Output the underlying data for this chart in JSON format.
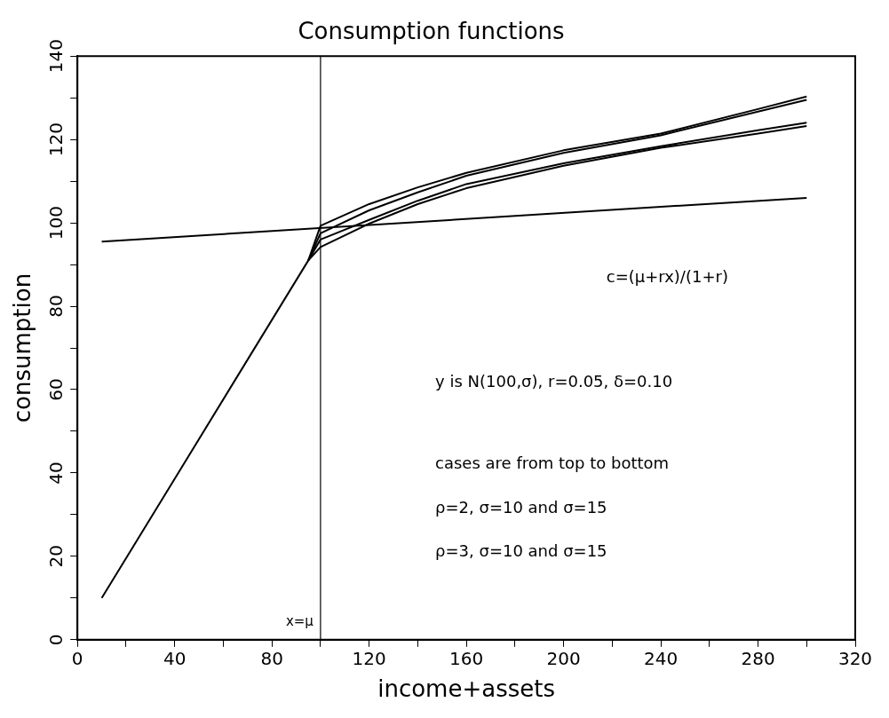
{
  "chart_data": {
    "type": "line",
    "title": "Consumption functions",
    "xlabel": "income+assets",
    "ylabel": "consumption",
    "xlim": [
      0,
      320
    ],
    "ylim": [
      0,
      140
    ],
    "xticks": [
      0,
      {
        "value": 20,
        "label": null
      },
      40,
      {
        "value": 60,
        "label": null
      },
      80,
      {
        "value": 100,
        "label": null
      },
      120,
      {
        "value": 140,
        "label": null
      },
      160,
      {
        "value": 180,
        "label": null
      },
      200,
      {
        "value": 220,
        "label": null
      },
      240,
      {
        "value": 260,
        "label": null
      },
      280,
      {
        "value": 300,
        "label": null
      },
      320
    ],
    "yticks": [
      0,
      {
        "value": 10,
        "label": null
      },
      20,
      {
        "value": 30,
        "label": null
      },
      40,
      {
        "value": 50,
        "label": null
      },
      60,
      {
        "value": 70,
        "label": null
      },
      80,
      {
        "value": 90,
        "label": null
      },
      100,
      {
        "value": 110,
        "label": null
      },
      120,
      {
        "value": 130,
        "label": null
      },
      140
    ],
    "grid": false,
    "legend": false,
    "marker": "none",
    "line_style": "solid",
    "series": [
      {
        "color": "#000000",
        "x": [
          10,
          95,
          100,
          120,
          140,
          160,
          200,
          240,
          280,
          300
        ],
        "values": [
          10,
          91,
          99.3,
          104.5,
          108.5,
          112,
          117.4,
          121.4,
          127.3,
          130.3
        ]
      },
      {
        "color": "#000000",
        "x": [
          95,
          100,
          120,
          140,
          160,
          200,
          240,
          280,
          300
        ],
        "values": [
          91,
          97.5,
          103,
          107.3,
          111.3,
          116.8,
          121,
          126.7,
          129.5
        ]
      },
      {
        "color": "#000000",
        "x": [
          95,
          100,
          120,
          140,
          160,
          200,
          240,
          280,
          300
        ],
        "values": [
          91,
          96,
          100.7,
          105.3,
          109.3,
          114.3,
          118.4,
          122.2,
          124
        ]
      },
      {
        "color": "#000000",
        "x": [
          95,
          100,
          120,
          140,
          160,
          200,
          240,
          280,
          300
        ],
        "values": [
          91,
          94.2,
          99.8,
          104.5,
          108.3,
          113.7,
          118,
          121.4,
          123.2
        ]
      },
      {
        "color": "#000000",
        "x": [
          10,
          300
        ],
        "values": [
          95.5,
          106
        ]
      }
    ],
    "ref_lines": [
      {
        "axis": "x",
        "value": 100,
        "label": "x=μ",
        "color": "#000000"
      }
    ],
    "annotations": [
      "c=(μ+rx)/(1+r)",
      "y is N(100,σ), r=0.05, δ=0.10",
      "cases are from top to bottom",
      "ρ=2, σ=10 and σ=15",
      "ρ=3, σ=10 and σ=15"
    ]
  }
}
